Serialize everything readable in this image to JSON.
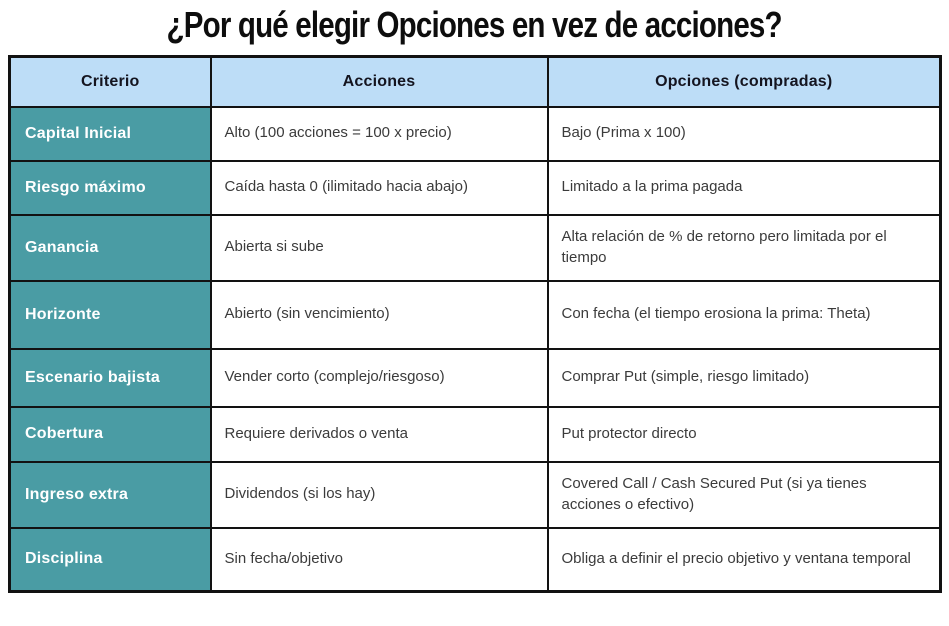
{
  "title": "¿Por qué elegir Opciones en vez de acciones?",
  "colors": {
    "header_bg": "#bdddf7",
    "criteria_bg": "#4a9ca4",
    "border": "#121212",
    "criteria_text": "#ffffff",
    "body_text": "#3b3b3b"
  },
  "table": {
    "headers": [
      "Criterio",
      "Acciones",
      "Opciones (compradas)"
    ],
    "rows": [
      {
        "criterio": "Capital Inicial",
        "acciones": "Alto (100 acciones = 100 x precio)",
        "opciones": "Bajo (Prima x 100)"
      },
      {
        "criterio": "Riesgo máximo",
        "acciones": "Caída hasta 0 (ilimitado hacia abajo)",
        "opciones": "Limitado a la prima pagada"
      },
      {
        "criterio": "Ganancia",
        "acciones": "Abierta si sube",
        "opciones": "Alta relación de % de retorno pero limitada por el tiempo"
      },
      {
        "criterio": "Horizonte",
        "acciones": "Abierto (sin vencimiento)",
        "opciones": "Con fecha (el tiempo erosiona la prima: Theta)"
      },
      {
        "criterio": "Escenario bajista",
        "acciones": "Vender corto (complejo/riesgoso)",
        "opciones": "Comprar Put (simple, riesgo limitado)"
      },
      {
        "criterio": "Cobertura",
        "acciones": "Requiere derivados o venta",
        "opciones": "Put protector directo"
      },
      {
        "criterio": "Ingreso extra",
        "acciones": "Dividendos (si los hay)",
        "opciones": "Covered Call / Cash Secured Put (si ya tienes acciones o efectivo)"
      },
      {
        "criterio": "Disciplina",
        "acciones": "Sin fecha/objetivo",
        "opciones": "Obliga a definir el precio objetivo y ventana temporal"
      }
    ]
  }
}
